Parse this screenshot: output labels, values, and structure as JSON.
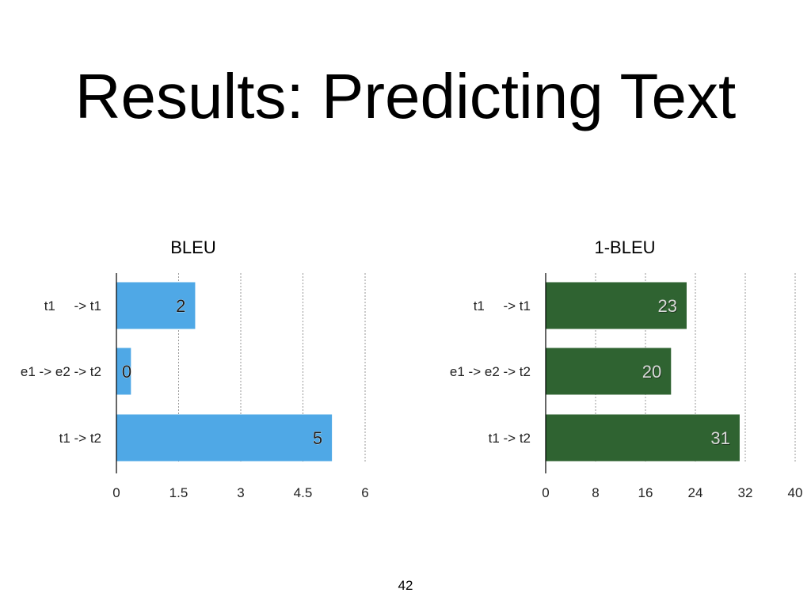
{
  "slide": {
    "title": "Results: Predicting Text",
    "page_number": "42"
  },
  "colors": {
    "bleu_bar": "#4fa8e6",
    "one_bleu_bar": "#2f6331",
    "bleu_label": "#1a1a1a",
    "one_bleu_label": "#d9d9d9",
    "grid": "#9a9a9a",
    "axis": "#000000",
    "text": "#222222"
  },
  "chart_data": [
    {
      "type": "bar",
      "orientation": "horizontal",
      "title": "BLEU",
      "categories": [
        "t1     -> t1",
        "e1 -> e2 -> t2",
        "t1 -> t2"
      ],
      "values": [
        1.9,
        0.35,
        5.2
      ],
      "data_labels": [
        "2",
        "0",
        "5"
      ],
      "xlim": [
        0,
        6
      ],
      "ticks": [
        "0",
        "1.5",
        "3",
        "4.5",
        "6"
      ],
      "grid": true
    },
    {
      "type": "bar",
      "orientation": "horizontal",
      "title": "1-BLEU",
      "categories": [
        "t1     -> t1",
        "e1 -> e2 -> t2",
        "t1 -> t2"
      ],
      "values": [
        22.6,
        20.1,
        31.1
      ],
      "data_labels": [
        "23",
        "20",
        "31"
      ],
      "xlim": [
        0,
        40
      ],
      "ticks": [
        "0",
        "8",
        "16",
        "24",
        "32",
        "40"
      ],
      "grid": true
    }
  ]
}
